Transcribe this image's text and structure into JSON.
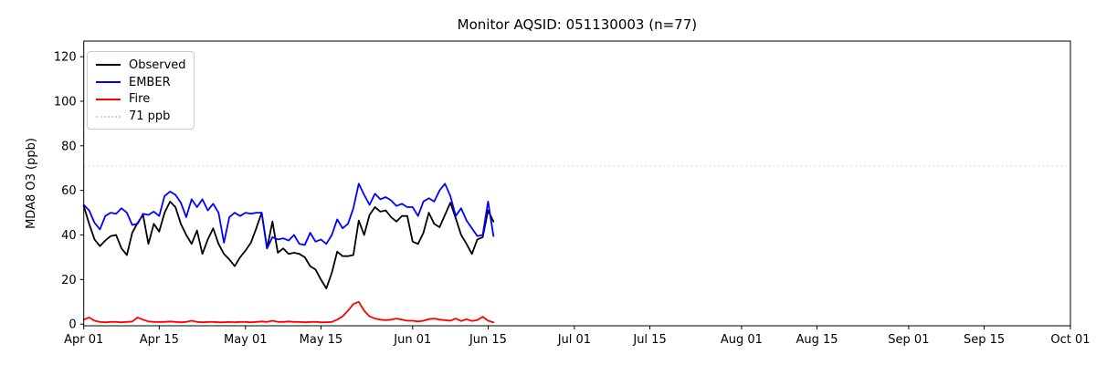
{
  "window": {
    "background": "#ffffff"
  },
  "chart_data": {
    "type": "line",
    "title": "Monitor AQSID: 051130003 (n=77)",
    "xlabel": "",
    "ylabel": "MDA8 O3 (ppb)",
    "x_start_date": "Apr 01",
    "x_end_date": "Oct 01",
    "x_axis_days_span": 183,
    "n_points": 77,
    "grid": "off",
    "ylim": [
      0,
      127
    ],
    "y_ticks": [
      0,
      20,
      40,
      60,
      80,
      100,
      120
    ],
    "x_ticks": [
      {
        "label": "Apr 01",
        "day": 0
      },
      {
        "label": "Apr 15",
        "day": 14
      },
      {
        "label": "May 01",
        "day": 30
      },
      {
        "label": "May 15",
        "day": 44
      },
      {
        "label": "Jun 01",
        "day": 61
      },
      {
        "label": "Jun 15",
        "day": 75
      },
      {
        "label": "Jul 01",
        "day": 91
      },
      {
        "label": "Jul 15",
        "day": 105
      },
      {
        "label": "Aug 01",
        "day": 122
      },
      {
        "label": "Aug 15",
        "day": 136
      },
      {
        "label": "Sep 01",
        "day": 153
      },
      {
        "label": "Sep 15",
        "day": 167
      },
      {
        "label": "Oct 01",
        "day": 183
      }
    ],
    "threshold_line": {
      "value": 71,
      "label": "71 ppb",
      "color": "#d3d3d3",
      "style": "dotted"
    },
    "series": [
      {
        "name": "Observed",
        "color": "#000000",
        "style": "solid",
        "values": [
          53,
          45,
          38,
          35,
          37.5,
          39.5,
          40,
          34,
          31,
          41,
          45.5,
          49,
          36,
          45,
          41.5,
          50,
          55,
          52.5,
          45,
          40,
          36,
          42,
          31.5,
          38,
          43,
          36,
          31.5,
          29,
          26,
          30,
          33,
          36.5,
          43,
          50,
          34,
          46,
          32,
          34,
          31.5,
          32,
          31.5,
          30,
          26,
          24.5,
          20,
          16,
          23,
          32.5,
          30.5,
          30.5,
          31,
          46.5,
          40,
          49,
          52.5,
          50.5,
          51,
          48,
          46,
          48.5,
          48.5,
          37,
          36,
          41,
          50,
          45,
          43.5,
          49,
          54.5,
          47.5,
          40,
          36,
          31.5,
          38,
          39,
          51,
          46
        ]
      },
      {
        "name": "EMBER",
        "color": "#0000ff",
        "style": "solid",
        "values": [
          53.5,
          51,
          45.5,
          42.5,
          48.5,
          50,
          49.5,
          52,
          50,
          44.5,
          45,
          49.5,
          49,
          50.5,
          48.5,
          57.5,
          59.5,
          58,
          54.5,
          48,
          56,
          52.5,
          56,
          51,
          54,
          50,
          36.5,
          48,
          50,
          48.5,
          50,
          49.5,
          50,
          50,
          34,
          39,
          38,
          38.5,
          37.5,
          40,
          36,
          35.5,
          41,
          37,
          38,
          36,
          40,
          47,
          43,
          45,
          52,
          63,
          58,
          53.5,
          58.5,
          56,
          57,
          55.5,
          53,
          54,
          52.5,
          52.5,
          48.5,
          55,
          56.5,
          55,
          60,
          63,
          57.5,
          48.5,
          52,
          46.5,
          43,
          39.5,
          40,
          55,
          39.5
        ]
      },
      {
        "name": "Fire",
        "color": "#ff0000",
        "style": "solid",
        "values": [
          2,
          3,
          1.5,
          1,
          0.8,
          1,
          1,
          0.8,
          1,
          1.2,
          3,
          2,
          1.2,
          1,
          1,
          1,
          1.2,
          1,
          0.8,
          1,
          1.5,
          1,
          0.8,
          1,
          1,
          0.8,
          0.8,
          1,
          0.8,
          1,
          1,
          0.8,
          1,
          1.2,
          1,
          1.5,
          1,
          1,
          1.2,
          1,
          1,
          0.8,
          1,
          1,
          0.8,
          0.8,
          1,
          2,
          3.5,
          6,
          9,
          10,
          6,
          3.5,
          2.5,
          2,
          1.8,
          2,
          2.5,
          2,
          1.5,
          1.5,
          1.2,
          1.5,
          2.2,
          2.5,
          2,
          1.8,
          1.5,
          2.5,
          1.4,
          2.2,
          1.4,
          1.8,
          3.3,
          1.5,
          0.8
        ]
      }
    ],
    "legend": {
      "position": "upper left",
      "items": [
        {
          "label": "Observed",
          "color": "#000000",
          "line_style": "solid"
        },
        {
          "label": "EMBER",
          "color": "#0000ff",
          "line_style": "solid"
        },
        {
          "label": "Fire",
          "color": "#ff0000",
          "line_style": "solid"
        },
        {
          "label": "71 ppb",
          "color": "#d3d3d3",
          "line_style": "dotted"
        }
      ]
    }
  }
}
